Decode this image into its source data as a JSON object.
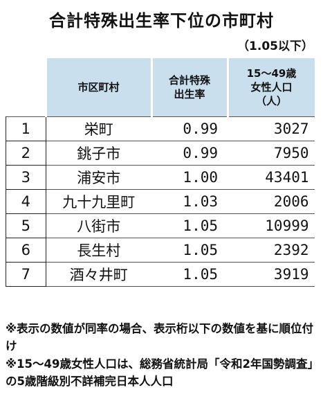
{
  "title": "合計特殊出生率下位の市町村",
  "subtitle": "（1.05以下）",
  "headers": {
    "name": "市区町村",
    "rate_l1": "合計特殊",
    "rate_l2": "出生率",
    "pop_l1": "15～49歳",
    "pop_l2": "女性人口",
    "pop_l3": "（人）"
  },
  "rows": [
    {
      "rank": "1",
      "name": "栄町",
      "rate": "0.99",
      "pop": "3027"
    },
    {
      "rank": "2",
      "name": "銚子市",
      "rate": "0.99",
      "pop": "7950"
    },
    {
      "rank": "3",
      "name": "浦安市",
      "rate": "1.00",
      "pop": "43401"
    },
    {
      "rank": "4",
      "name": "九十九里町",
      "rate": "1.03",
      "pop": "2006"
    },
    {
      "rank": "5",
      "name": "八街市",
      "rate": "1.05",
      "pop": "10999"
    },
    {
      "rank": "6",
      "name": "長生村",
      "rate": "1.05",
      "pop": "2392"
    },
    {
      "rank": "7",
      "name": "酒々井町",
      "rate": "1.05",
      "pop": "3919"
    }
  ],
  "notes": [
    "※表示の数値が同率の場合、表示桁以下の数値を基に順位付け",
    "※15～49歳女性人口は、総務省統計局「令和2年国勢調査」の5歳階級別不詳補完日本人人口"
  ]
}
